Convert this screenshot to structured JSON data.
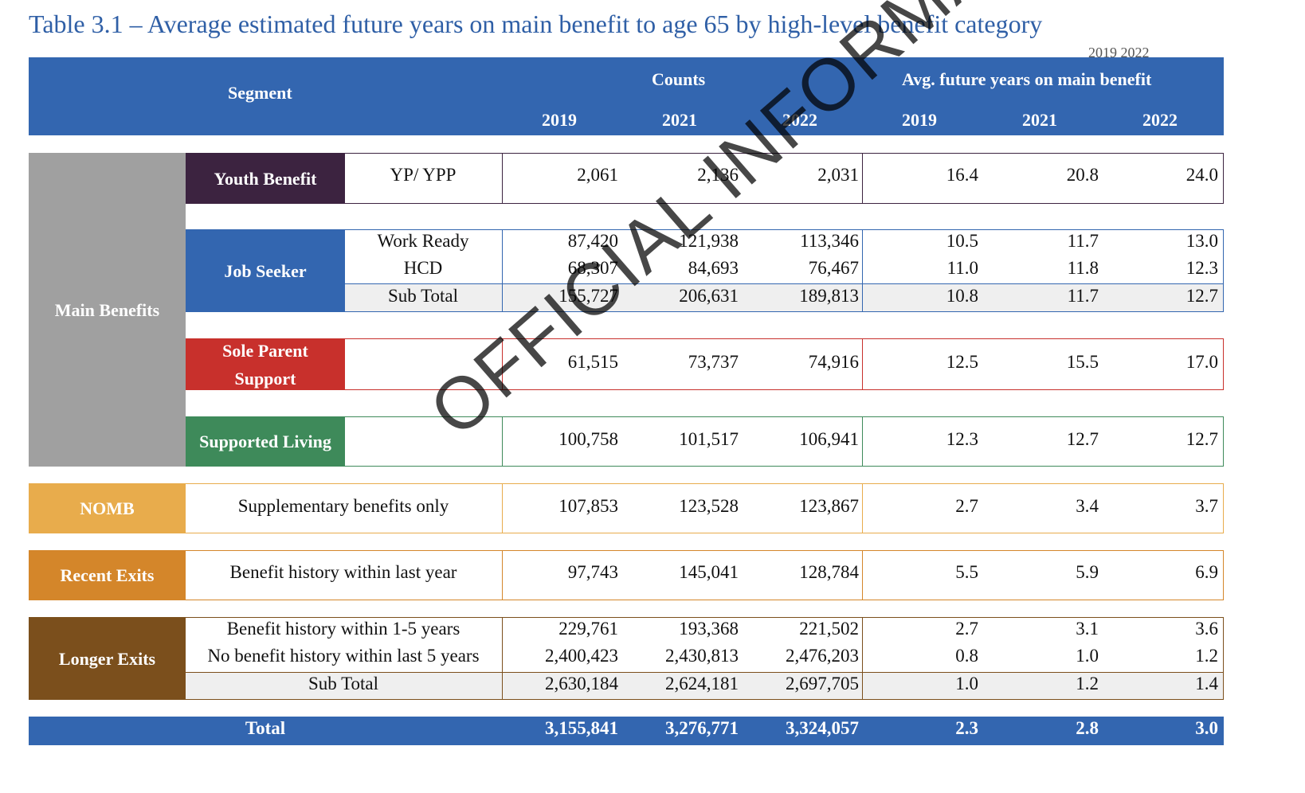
{
  "title": "Table 3.1 – Average estimated future years on main benefit to age 65 by high-level benefit category",
  "header": {
    "segment_label": "Segment",
    "counts_label": "Counts",
    "avg_label": "Avg. future years on main benefit",
    "years": [
      "2019",
      "2021",
      "2022"
    ],
    "ghost_text": "2019      2022"
  },
  "groups": {
    "main_benefits": "Main Benefits",
    "nomb": "NOMB",
    "recent_exits": "Recent Exits",
    "longer_exits": "Longer Exits",
    "total": "Total"
  },
  "segments": {
    "youth": "Youth Benefit",
    "job_seeker": "Job Seeker",
    "sole_parent": "Sole Parent Support",
    "supported_living": "Supported Living"
  },
  "rows": {
    "yp": {
      "label": "YP/ YPP",
      "c2019": "2,061",
      "c2021": "2,136",
      "c2022": "2,031",
      "a2019": "16.4",
      "a2021": "20.8",
      "a2022": "24.0"
    },
    "work_ready": {
      "label": "Work Ready",
      "c2019": "87,420",
      "c2021": "121,938",
      "c2022": "113,346",
      "a2019": "10.5",
      "a2021": "11.7",
      "a2022": "13.0"
    },
    "hcd": {
      "label": "HCD",
      "c2019": "68,307",
      "c2021": "84,693",
      "c2022": "76,467",
      "a2019": "11.0",
      "a2021": "11.8",
      "a2022": "12.3"
    },
    "js_subtotal": {
      "label": "Sub Total",
      "c2019": "155,727",
      "c2021": "206,631",
      "c2022": "189,813",
      "a2019": "10.8",
      "a2021": "11.7",
      "a2022": "12.7"
    },
    "sole_parent": {
      "label": "",
      "c2019": "61,515",
      "c2021": "73,737",
      "c2022": "74,916",
      "a2019": "12.5",
      "a2021": "15.5",
      "a2022": "17.0"
    },
    "supported_living": {
      "label": "",
      "c2019": "100,758",
      "c2021": "101,517",
      "c2022": "106,941",
      "a2019": "12.3",
      "a2021": "12.7",
      "a2022": "12.7"
    },
    "nomb": {
      "label": "Supplementary benefits only",
      "c2019": "107,853",
      "c2021": "123,528",
      "c2022": "123,867",
      "a2019": "2.7",
      "a2021": "3.4",
      "a2022": "3.7"
    },
    "recent": {
      "label": "Benefit history within last year",
      "c2019": "97,743",
      "c2021": "145,041",
      "c2022": "128,784",
      "a2019": "5.5",
      "a2021": "5.9",
      "a2022": "6.9"
    },
    "le_1to5": {
      "label": "Benefit history within 1-5 years",
      "c2019": "229,761",
      "c2021": "193,368",
      "c2022": "221,502",
      "a2019": "2.7",
      "a2021": "3.1",
      "a2022": "3.6"
    },
    "le_none5": {
      "label": "No benefit history within last 5 years",
      "c2019": "2,400,423",
      "c2021": "2,430,813",
      "c2022": "2,476,203",
      "a2019": "0.8",
      "a2021": "1.0",
      "a2022": "1.2"
    },
    "le_subtotal": {
      "label": "Sub Total",
      "c2019": "2,630,184",
      "c2021": "2,624,181",
      "c2022": "2,697,705",
      "a2019": "1.0",
      "a2021": "1.2",
      "a2022": "1.4"
    },
    "total": {
      "label": "Total",
      "c2019": "3,155,841",
      "c2021": "3,276,771",
      "c2022": "3,324,057",
      "a2019": "2.3",
      "a2021": "2.8",
      "a2022": "3.0"
    }
  },
  "watermark": "OFFICIAL INFORMATION ACT - DRAFT VERSION",
  "colors": {
    "header": "#3366b0",
    "main": "#a0a0a0",
    "youth": "#3c2340",
    "job": "#3366b0",
    "sole": "#c8302c",
    "living": "#3e8a5a",
    "nomb": "#e8ac4c",
    "recent": "#d4862a",
    "longer": "#7b4f1c"
  }
}
